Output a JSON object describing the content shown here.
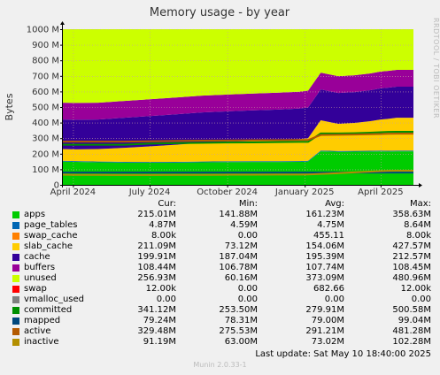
{
  "title": "Memory usage - by year",
  "ylabel": "Bytes",
  "watermark": "RRDTOOL / TOBI OETIKER",
  "legend_headers": {
    "cur": "Cur:",
    "min": "Min:",
    "avg": "Avg:",
    "max": "Max:"
  },
  "legend": [
    {
      "name": "apps",
      "color": "#00cc00",
      "cur": "215.01M",
      "min": "141.88M",
      "avg": "161.23M",
      "max": "358.63M"
    },
    {
      "name": "page_tables",
      "color": "#0066b3",
      "cur": "4.87M",
      "min": "4.59M",
      "avg": "4.75M",
      "max": "8.64M"
    },
    {
      "name": "swap_cache",
      "color": "#ff8000",
      "cur": "8.00k",
      "min": "0.00",
      "avg": "455.11",
      "max": "8.00k"
    },
    {
      "name": "slab_cache",
      "color": "#ffcc00",
      "cur": "211.09M",
      "min": "73.12M",
      "avg": "154.06M",
      "max": "427.57M"
    },
    {
      "name": "cache",
      "color": "#330099",
      "cur": "199.91M",
      "min": "187.04M",
      "avg": "195.39M",
      "max": "212.57M"
    },
    {
      "name": "buffers",
      "color": "#990099",
      "cur": "108.44M",
      "min": "106.78M",
      "avg": "107.74M",
      "max": "108.45M"
    },
    {
      "name": "unused",
      "color": "#ccff00",
      "cur": "256.93M",
      "min": "60.16M",
      "avg": "373.09M",
      "max": "480.96M"
    },
    {
      "name": "swap",
      "color": "#ff0000",
      "cur": "12.00k",
      "min": "0.00",
      "avg": "682.66",
      "max": "12.00k"
    },
    {
      "name": "vmalloc_used",
      "color": "#808080",
      "cur": "0.00",
      "min": "0.00",
      "avg": "0.00",
      "max": "0.00"
    },
    {
      "name": "committed",
      "color": "#008f00",
      "cur": "341.12M",
      "min": "253.50M",
      "avg": "279.91M",
      "max": "500.58M"
    },
    {
      "name": "mapped",
      "color": "#00487d",
      "cur": "79.24M",
      "min": "78.31M",
      "avg": "79.00M",
      "max": "99.04M"
    },
    {
      "name": "active",
      "color": "#b35a00",
      "cur": "329.48M",
      "min": "275.53M",
      "avg": "291.21M",
      "max": "481.28M"
    },
    {
      "name": "inactive",
      "color": "#b38f00",
      "cur": "91.19M",
      "min": "63.00M",
      "avg": "73.02M",
      "max": "102.28M"
    }
  ],
  "last_update": "Last update:  Sat May 10 18:40:00 2025",
  "munin_version": "Munin 2.0.33-1",
  "chart_data": {
    "type": "area",
    "title": "Memory usage - by year",
    "ylabel": "Bytes",
    "ylim": [
      0,
      1000
    ],
    "y_unit": "M",
    "y_ticks": [
      0,
      100,
      200,
      300,
      400,
      500,
      600,
      700,
      800,
      900,
      1000
    ],
    "y_tick_labels": [
      "0",
      "100 M",
      "200 M",
      "300 M",
      "400 M",
      "500 M",
      "600 M",
      "700 M",
      "800 M",
      "900 M",
      "1000 M"
    ],
    "x_range": [
      "2024-03-20",
      "2025-05-10"
    ],
    "x_ticks": [
      "2024-04-01",
      "2024-07-01",
      "2024-10-01",
      "2025-01-01",
      "2025-04-01"
    ],
    "x_tick_labels": [
      "April 2024",
      "July 2024",
      "October 2024",
      "January 2025",
      "April 2025"
    ],
    "grid": true,
    "stacked": true,
    "x": [
      "2024-03-20",
      "2024-04-05",
      "2024-05-01",
      "2024-06-01",
      "2024-07-01",
      "2024-08-01",
      "2024-09-01",
      "2024-10-01",
      "2024-11-01",
      "2024-12-01",
      "2024-12-25",
      "2025-01-05",
      "2025-01-20",
      "2025-02-10",
      "2025-03-01",
      "2025-03-20",
      "2025-04-01",
      "2025-04-10",
      "2025-04-20",
      "2025-05-10"
    ],
    "series": [
      {
        "name": "apps",
        "values": [
          150,
          148,
          145,
          143,
          142,
          143,
          145,
          146,
          147,
          147,
          148,
          150,
          215,
          212,
          213,
          214,
          215,
          214,
          215,
          215
        ]
      },
      {
        "name": "page_tables",
        "values": [
          5,
          5,
          5,
          5,
          5,
          5,
          5,
          5,
          5,
          5,
          5,
          5,
          5,
          5,
          5,
          5,
          5,
          5,
          5,
          5
        ]
      },
      {
        "name": "swap_cache",
        "values": [
          0,
          0,
          0,
          0,
          0,
          0,
          0,
          0,
          0,
          0,
          0,
          0,
          0,
          0,
          0,
          0,
          0,
          0,
          0,
          0
        ]
      },
      {
        "name": "slab_cache",
        "values": [
          75,
          75,
          80,
          90,
          100,
          110,
          120,
          125,
          130,
          135,
          140,
          145,
          195,
          175,
          180,
          190,
          200,
          205,
          211,
          211
        ]
      },
      {
        "name": "cache",
        "values": [
          190,
          190,
          190,
          193,
          195,
          195,
          195,
          196,
          197,
          197,
          197,
          197,
          198,
          198,
          198,
          199,
          200,
          200,
          200,
          200
        ]
      },
      {
        "name": "buffers",
        "values": [
          108,
          108,
          108,
          108,
          108,
          108,
          108,
          108,
          108,
          108,
          108,
          108,
          108,
          108,
          108,
          108,
          108,
          108,
          108,
          108
        ]
      },
      {
        "name": "unused",
        "values": [
          472,
          474,
          472,
          461,
          450,
          439,
          427,
          420,
          413,
          408,
          402,
          395,
          279,
          302,
          296,
          284,
          272,
          268,
          261,
          261
        ]
      }
    ],
    "lines": [
      {
        "name": "committed",
        "values": [
          258,
          258,
          258,
          258,
          265,
          268,
          270,
          272,
          273,
          275,
          276,
          276,
          330,
          330,
          332,
          335,
          338,
          340,
          341,
          341
        ]
      },
      {
        "name": "mapped",
        "values": [
          79,
          79,
          79,
          79,
          79,
          79,
          79,
          79,
          79,
          79,
          79,
          79,
          79,
          79,
          79,
          79,
          79,
          79,
          79,
          79
        ]
      },
      {
        "name": "active",
        "values": [
          278,
          278,
          278,
          278,
          280,
          282,
          284,
          285,
          286,
          287,
          288,
          288,
          320,
          322,
          323,
          325,
          327,
          328,
          329,
          329
        ]
      },
      {
        "name": "inactive",
        "values": [
          65,
          64,
          64,
          63,
          63,
          64,
          64,
          65,
          65,
          66,
          66,
          67,
          70,
          75,
          80,
          85,
          88,
          90,
          91,
          91
        ]
      }
    ]
  }
}
